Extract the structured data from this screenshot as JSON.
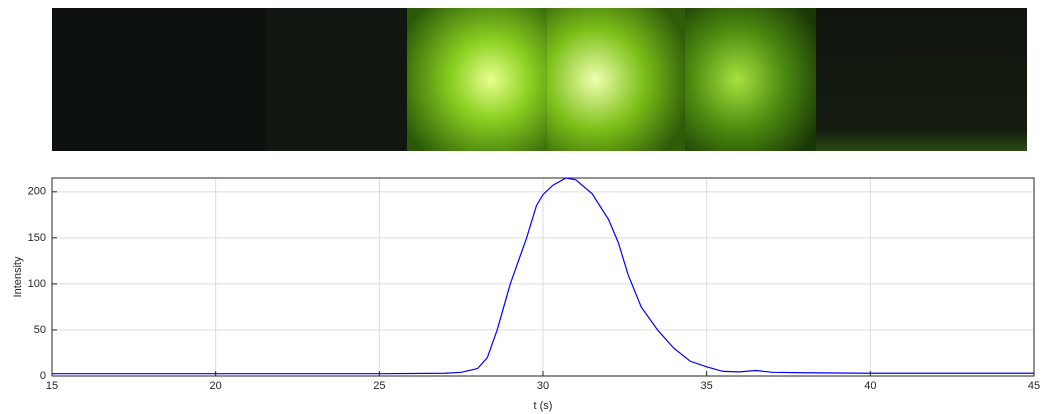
{
  "chart_data": {
    "type": "line",
    "x": [
      15,
      20,
      25,
      27,
      27.5,
      28,
      28.3,
      28.6,
      29,
      29.5,
      29.8,
      30,
      30.3,
      30.7,
      31,
      31.5,
      32,
      32.3,
      32.6,
      33,
      33.5,
      34,
      34.5,
      35,
      35.5,
      36,
      36.5,
      37,
      38,
      40,
      45
    ],
    "series": [
      {
        "color": "#0000ff",
        "values": [
          2.5,
          2.5,
          2.5,
          3,
          4,
          8,
          20,
          50,
          100,
          150,
          185,
          197,
          207,
          215,
          213,
          198,
          170,
          145,
          110,
          75,
          50,
          30,
          16,
          10,
          5,
          4.5,
          6,
          4,
          3.5,
          3,
          3
        ]
      }
    ],
    "xlabel": "t (s)",
    "ylabel": "Intensity",
    "xlim": [
      15,
      45
    ],
    "ylim": [
      0,
      215
    ],
    "xticks": [
      15,
      20,
      25,
      30,
      35,
      40,
      45
    ],
    "yticks": [
      0,
      50,
      100,
      150,
      200
    ],
    "grid": true
  }
}
